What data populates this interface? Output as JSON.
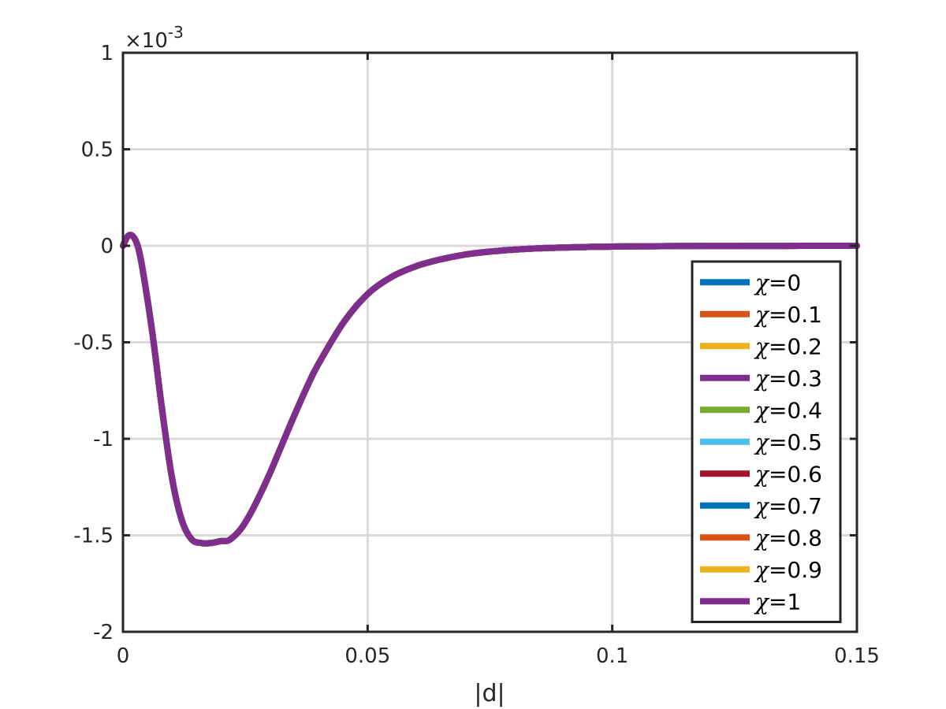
{
  "chart_data": {
    "type": "line",
    "xlabel": "|d|",
    "ylabel": "",
    "xlim": [
      0,
      0.15
    ],
    "ylim": [
      -2,
      1
    ],
    "y_exponent_label": "×10",
    "y_exponent": "-3",
    "xticks": [
      "0",
      "0.05",
      "0.1",
      "0.15"
    ],
    "xtick_values": [
      0,
      0.05,
      0.1,
      0.15
    ],
    "yticks": [
      "1",
      "0.5",
      "0",
      "-0.5",
      "-1",
      "-1.5",
      "-2"
    ],
    "ytick_values": [
      1,
      0.5,
      0,
      -0.5,
      -1,
      -1.5,
      -2
    ],
    "grid": true,
    "legend_position": "bottom-right",
    "legend_symbol": "χ",
    "series": [
      {
        "name": "=0",
        "color": "#0072BD"
      },
      {
        "name": "=0.1",
        "color": "#D95319"
      },
      {
        "name": "=0.2",
        "color": "#EDB120"
      },
      {
        "name": "=0.3",
        "color": "#7E2F8E"
      },
      {
        "name": "=0.4",
        "color": "#77AC30"
      },
      {
        "name": "=0.5",
        "color": "#4DBEEE"
      },
      {
        "name": "=0.6",
        "color": "#A2142F"
      },
      {
        "name": "=0.7",
        "color": "#0072BD"
      },
      {
        "name": "=0.8",
        "color": "#D95319"
      },
      {
        "name": "=0.9",
        "color": "#EDB120"
      },
      {
        "name": "=1",
        "color": "#7E2F8E"
      }
    ],
    "x": [
      0,
      0.001,
      0.002,
      0.003,
      0.004,
      0.006,
      0.008,
      0.01,
      0.012,
      0.014,
      0.016,
      0.018,
      0.02,
      0.021,
      0.022,
      0.024,
      0.026,
      0.028,
      0.03,
      0.032,
      0.035,
      0.038,
      0.04,
      0.045,
      0.05,
      0.055,
      0.06,
      0.065,
      0.07,
      0.075,
      0.08,
      0.085,
      0.09,
      0.095,
      0.1,
      0.11,
      0.12,
      0.13,
      0.14,
      0.15
    ],
    "y": [
      0,
      0.05,
      0.05,
      0.0,
      -0.12,
      -0.45,
      -0.85,
      -1.2,
      -1.42,
      -1.52,
      -1.54,
      -1.54,
      -1.53,
      -1.53,
      -1.52,
      -1.47,
      -1.39,
      -1.29,
      -1.18,
      -1.06,
      -0.88,
      -0.71,
      -0.61,
      -0.4,
      -0.25,
      -0.16,
      -0.105,
      -0.07,
      -0.045,
      -0.03,
      -0.02,
      -0.013,
      -0.009,
      -0.006,
      -0.004,
      -0.002,
      -0.001,
      -0.0005,
      -0.0002,
      -0.0001
    ]
  }
}
